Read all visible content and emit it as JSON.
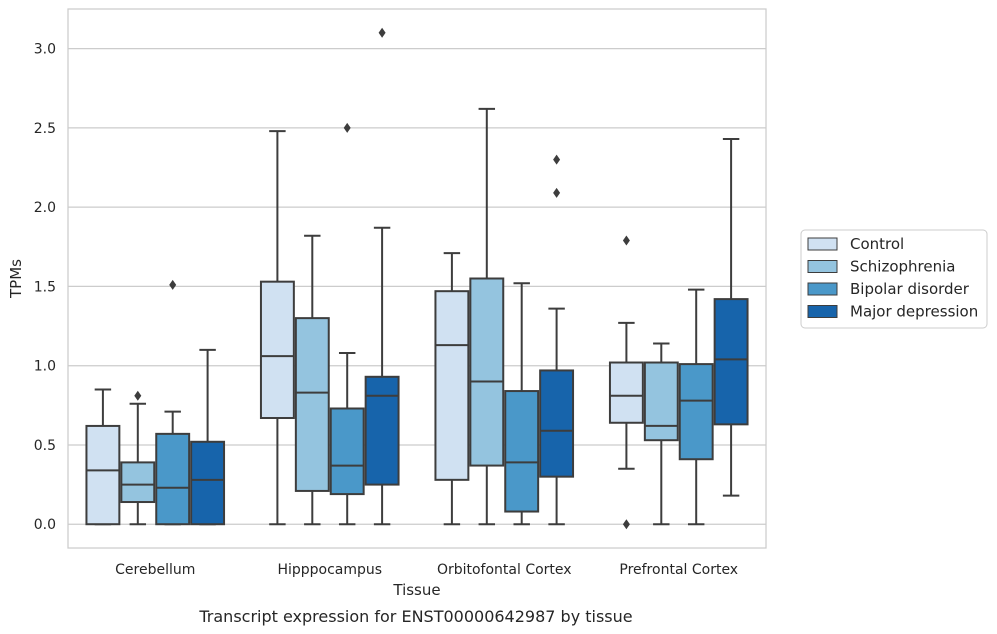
{
  "chart_data": {
    "type": "box",
    "caption": "Transcript expression for ENST00000642987 by tissue",
    "xlabel": "Tissue",
    "ylabel": "TPMs",
    "ylim": [
      -0.15,
      3.25
    ],
    "yticks": [
      0.0,
      0.5,
      1.0,
      1.5,
      2.0,
      2.5,
      3.0
    ],
    "ytick_labels": [
      "0.0",
      "0.5",
      "1.0",
      "1.5",
      "2.0",
      "2.5",
      "3.0"
    ],
    "grid": "horizontal",
    "legend_position": "right",
    "categories": [
      "Cerebellum",
      "Hipppocampus",
      "Orbitofontal Cortex",
      "Prefrontal Cortex"
    ],
    "series": [
      {
        "name": "Control",
        "color": "#d0e1f2",
        "boxes": [
          {
            "whislo": 0.0,
            "q1": 0.0,
            "med": 0.34,
            "q3": 0.62,
            "whishi": 0.85,
            "fliers": []
          },
          {
            "whislo": 0.0,
            "q1": 0.67,
            "med": 1.06,
            "q3": 1.53,
            "whishi": 2.48,
            "fliers": []
          },
          {
            "whislo": 0.0,
            "q1": 0.28,
            "med": 1.13,
            "q3": 1.47,
            "whishi": 1.71,
            "fliers": []
          },
          {
            "whislo": 0.35,
            "q1": 0.64,
            "med": 0.81,
            "q3": 1.02,
            "whishi": 1.27,
            "fliers": [
              0.0,
              1.79
            ]
          }
        ]
      },
      {
        "name": "Schizophrenia",
        "color": "#94c4df",
        "boxes": [
          {
            "whislo": 0.0,
            "q1": 0.14,
            "med": 0.25,
            "q3": 0.39,
            "whishi": 0.76,
            "fliers": [
              0.81
            ]
          },
          {
            "whislo": 0.0,
            "q1": 0.21,
            "med": 0.83,
            "q3": 1.3,
            "whishi": 1.82,
            "fliers": []
          },
          {
            "whislo": 0.0,
            "q1": 0.37,
            "med": 0.9,
            "q3": 1.55,
            "whishi": 2.62,
            "fliers": []
          },
          {
            "whislo": 0.0,
            "q1": 0.53,
            "med": 0.62,
            "q3": 1.02,
            "whishi": 1.14,
            "fliers": []
          }
        ]
      },
      {
        "name": "Bipolar disorder",
        "color": "#4a98c9",
        "boxes": [
          {
            "whislo": 0.0,
            "q1": 0.0,
            "med": 0.23,
            "q3": 0.57,
            "whishi": 0.71,
            "fliers": [
              1.51
            ]
          },
          {
            "whislo": 0.0,
            "q1": 0.19,
            "med": 0.37,
            "q3": 0.73,
            "whishi": 1.08,
            "fliers": [
              2.5
            ]
          },
          {
            "whislo": 0.0,
            "q1": 0.08,
            "med": 0.39,
            "q3": 0.84,
            "whishi": 1.52,
            "fliers": []
          },
          {
            "whislo": 0.0,
            "q1": 0.41,
            "med": 0.78,
            "q3": 1.01,
            "whishi": 1.48,
            "fliers": []
          }
        ]
      },
      {
        "name": "Major depression",
        "color": "#1764ab",
        "boxes": [
          {
            "whislo": 0.0,
            "q1": 0.0,
            "med": 0.28,
            "q3": 0.52,
            "whishi": 1.1,
            "fliers": []
          },
          {
            "whislo": 0.0,
            "q1": 0.25,
            "med": 0.81,
            "q3": 0.93,
            "whishi": 1.87,
            "fliers": [
              3.1
            ]
          },
          {
            "whislo": 0.0,
            "q1": 0.3,
            "med": 0.59,
            "q3": 0.97,
            "whishi": 1.36,
            "fliers": [
              2.09,
              2.3
            ]
          },
          {
            "whislo": 0.18,
            "q1": 0.63,
            "med": 1.04,
            "q3": 1.42,
            "whishi": 2.43,
            "fliers": []
          }
        ]
      }
    ]
  }
}
